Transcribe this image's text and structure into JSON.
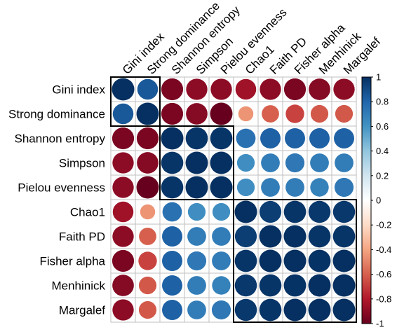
{
  "chart_data": {
    "type": "heatmap",
    "method": "circle",
    "title": "",
    "rows": [
      "Gini index",
      "Strong dominance",
      "Shannon entropy",
      "Simpson",
      "Pielou evenness",
      "Chao1",
      "Faith PD",
      "Fisher alpha",
      "Menhinick",
      "Margalef"
    ],
    "columns": [
      "Gini index",
      "Strong dominance",
      "Shannon entropy",
      "Simpson",
      "Pielou evenness",
      "Chao1",
      "Faith PD",
      "Fisher alpha",
      "Menhinick",
      "Margalef"
    ],
    "values": [
      [
        1.0,
        0.85,
        -0.95,
        -0.9,
        -0.9,
        -0.85,
        -0.9,
        -0.95,
        -0.92,
        -0.9
      ],
      [
        0.85,
        1.0,
        -0.95,
        -0.92,
        -1.0,
        -0.45,
        -0.6,
        -0.68,
        -0.62,
        -0.62
      ],
      [
        -0.95,
        -0.95,
        1.0,
        0.98,
        0.98,
        0.75,
        0.82,
        0.82,
        0.82,
        0.82
      ],
      [
        -0.9,
        -0.92,
        0.98,
        1.0,
        1.0,
        0.62,
        0.7,
        0.72,
        0.7,
        0.7
      ],
      [
        -0.9,
        -1.0,
        0.98,
        1.0,
        1.0,
        0.62,
        0.7,
        0.7,
        0.68,
        0.72
      ],
      [
        -0.85,
        -0.45,
        0.75,
        0.62,
        0.62,
        1.0,
        0.95,
        0.98,
        0.97,
        0.97
      ],
      [
        -0.9,
        -0.6,
        0.82,
        0.7,
        0.7,
        0.95,
        1.0,
        1.0,
        0.98,
        0.98
      ],
      [
        -0.95,
        -0.68,
        0.82,
        0.72,
        0.7,
        0.98,
        1.0,
        1.0,
        0.99,
        1.0
      ],
      [
        -0.92,
        -0.62,
        0.82,
        0.7,
        0.68,
        0.97,
        0.98,
        0.99,
        1.0,
        1.0
      ],
      [
        -0.9,
        -0.62,
        0.82,
        0.7,
        0.72,
        0.97,
        0.98,
        1.0,
        1.0,
        1.0
      ]
    ],
    "clusters": [
      {
        "start": 0,
        "end": 1
      },
      {
        "start": 2,
        "end": 4
      },
      {
        "start": 5,
        "end": 9
      }
    ],
    "colorbar": {
      "range": [
        -1,
        1
      ],
      "ticks": [
        "1",
        "0.8",
        "0.6",
        "0.4",
        "0.2",
        "0",
        "-0.2",
        "-0.4",
        "-0.6",
        "-0.8",
        "-1"
      ],
      "tick_values": [
        1,
        0.8,
        0.6,
        0.4,
        0.2,
        0,
        -0.2,
        -0.4,
        -0.6,
        -0.8,
        -1
      ],
      "colors": [
        "#67001F",
        "#B2182B",
        "#D6604D",
        "#F4A582",
        "#FDDBC7",
        "#FFFFFF",
        "#D1E5F0",
        "#92C5DE",
        "#4393C3",
        "#2166AC",
        "#053061"
      ]
    }
  }
}
